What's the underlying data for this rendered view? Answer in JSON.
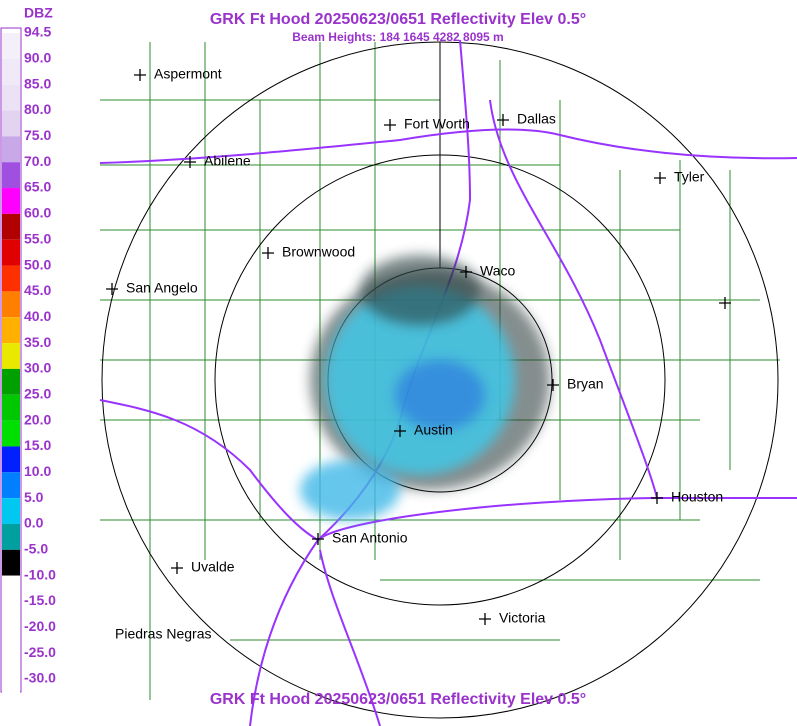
{
  "header": {
    "title": "GRK Ft Hood 20250623/0651 Reflectivity Elev 0.5°",
    "subtitle": "Beam Heights: 184 1645 4282 8095 m"
  },
  "footer": {
    "title": "GRK Ft Hood 20250623/0651 Reflectivity Elev 0.5°"
  },
  "legend": {
    "unit": "DBZ",
    "entries": [
      {
        "label": "94.5",
        "color": "#f4f0fa"
      },
      {
        "label": "90.0",
        "color": "#f0eaf8"
      },
      {
        "label": "85.0",
        "color": "#ebe2f5"
      },
      {
        "label": "80.0",
        "color": "#e2d4f0"
      },
      {
        "label": "75.0",
        "color": "#c8a8e8"
      },
      {
        "label": "70.0",
        "color": "#a050e0"
      },
      {
        "label": "65.0",
        "color": "#ff00ff"
      },
      {
        "label": "60.0",
        "color": "#b00000"
      },
      {
        "label": "55.0",
        "color": "#e00000"
      },
      {
        "label": "50.0",
        "color": "#ff3000"
      },
      {
        "label": "45.0",
        "color": "#ff8000"
      },
      {
        "label": "40.0",
        "color": "#ffb000"
      },
      {
        "label": "35.0",
        "color": "#e8e800"
      },
      {
        "label": "30.0",
        "color": "#00a000"
      },
      {
        "label": "25.0",
        "color": "#00c800"
      },
      {
        "label": "20.0",
        "color": "#00e000"
      },
      {
        "label": "15.0",
        "color": "#0020ff"
      },
      {
        "label": "10.0",
        "color": "#0080ff"
      },
      {
        "label": "5.0",
        "color": "#00c8f0"
      },
      {
        "label": "0.0",
        "color": "#00a0a0"
      },
      {
        "label": "-5.0",
        "color": "#000000"
      },
      {
        "label": "-10.0",
        "color": "#ffffff"
      },
      {
        "label": "-15.0",
        "color": "#ffffff"
      },
      {
        "label": "-20.0",
        "color": "#ffffff"
      },
      {
        "label": "-25.0",
        "color": "#ffffff"
      },
      {
        "label": "-30.0",
        "color": "#ffffff"
      }
    ]
  },
  "cities": [
    "Aspermont",
    "Fort Worth",
    "Dallas",
    "Abilene",
    "Tyler",
    "Brownwood",
    "Waco",
    "San Angelo",
    "Bryan",
    "Austin",
    "Houston",
    "San Antonio",
    "Uvalde",
    "Victoria",
    "Piedras Negras"
  ]
}
